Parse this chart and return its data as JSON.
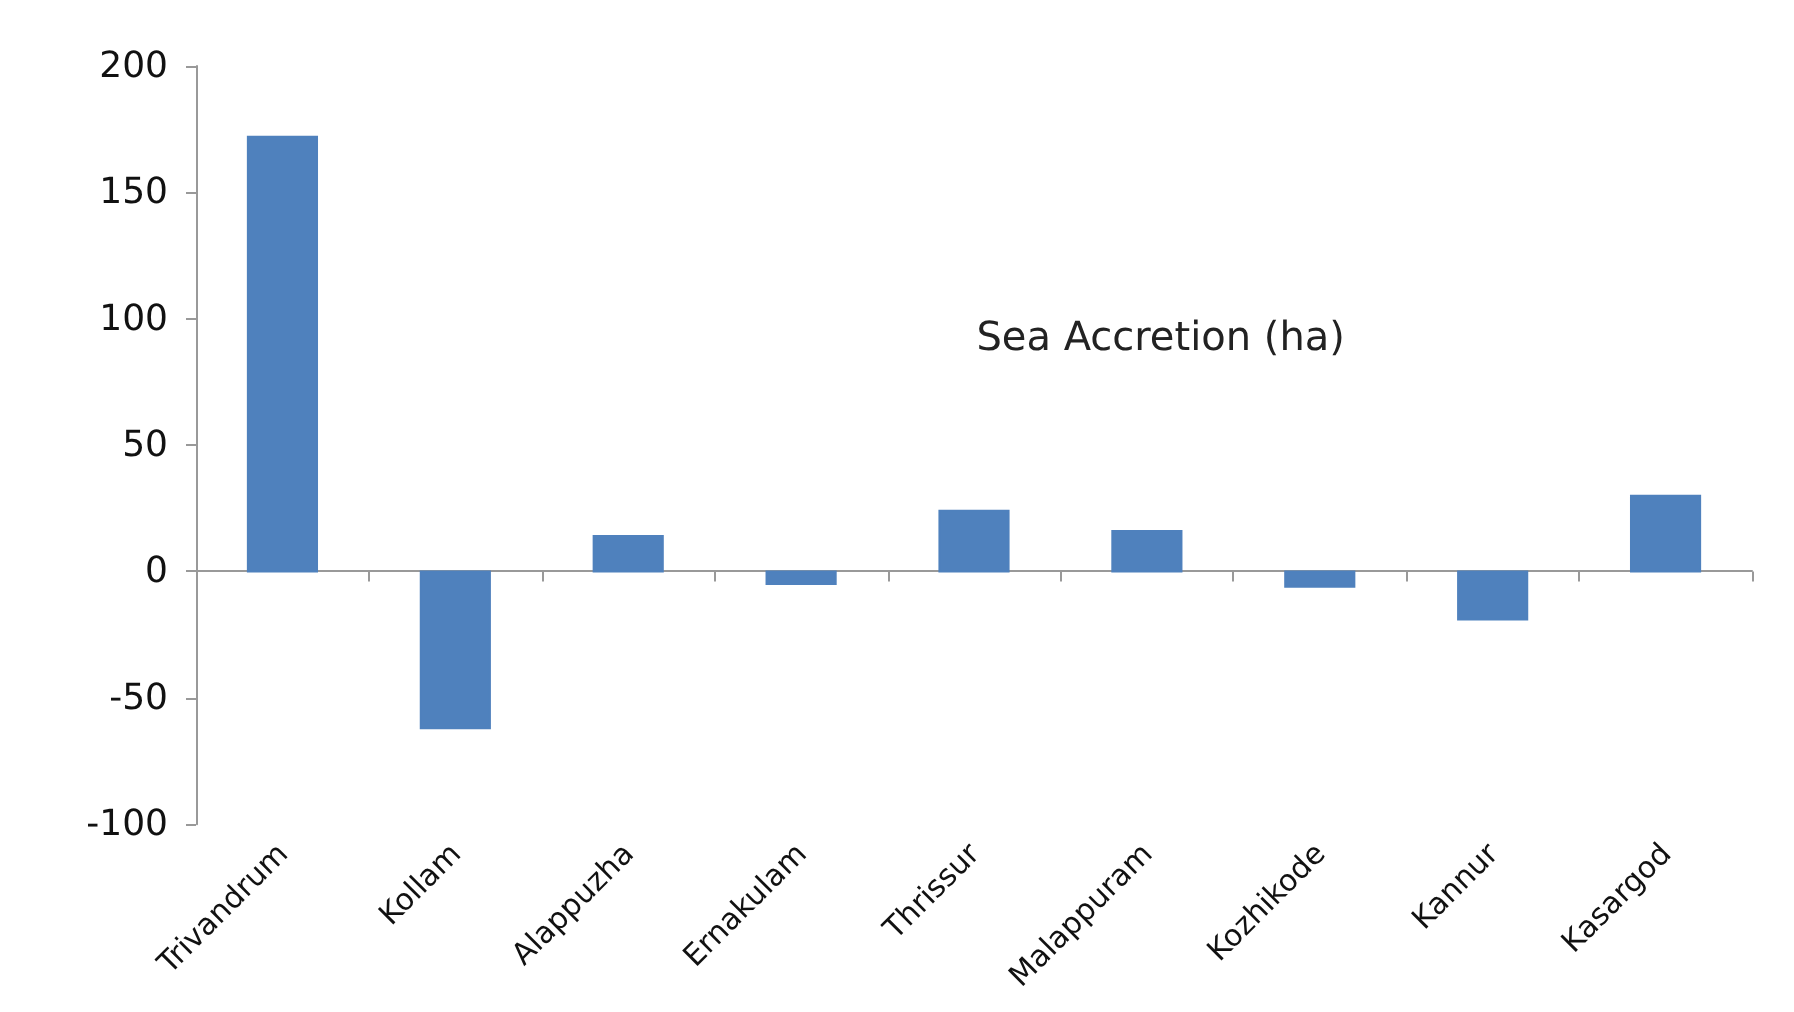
{
  "chart_data": {
    "type": "bar",
    "title": "Sea Accretion (ha)",
    "categories": [
      "Trivandrum",
      "Kollam",
      "Alappuzha",
      "Ernakulam",
      "Thrissur",
      "Malappuram",
      "Kozhikode",
      "Kannur",
      "Kasargod"
    ],
    "values": [
      172,
      -62,
      14,
      -5,
      24,
      16,
      -6,
      -19,
      30
    ],
    "color": "#4f81bd",
    "ylim": [
      -100,
      200
    ],
    "yticks": [
      -100,
      -50,
      0,
      50,
      100,
      150,
      200
    ]
  }
}
